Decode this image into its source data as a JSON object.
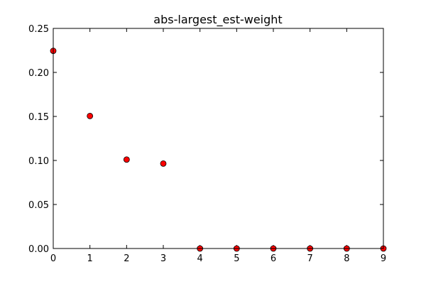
{
  "chart_data": {
    "type": "scatter",
    "title": "abs-largest_est-weight",
    "xlabel": "",
    "ylabel": "",
    "x": [
      0,
      1,
      2,
      3,
      4,
      5,
      6,
      7,
      8,
      9
    ],
    "y": [
      0.2245,
      0.1505,
      0.101,
      0.0965,
      0.0,
      0.0,
      0.0,
      0.0,
      0.0,
      0.0
    ],
    "xlim": [
      0,
      9
    ],
    "ylim": [
      0,
      0.25
    ],
    "xticks": [
      0,
      1,
      2,
      3,
      4,
      5,
      6,
      7,
      8,
      9
    ],
    "xtick_labels": [
      "0",
      "1",
      "2",
      "3",
      "4",
      "5",
      "6",
      "7",
      "8",
      "9"
    ],
    "yticks": [
      0,
      0.05,
      0.1,
      0.15,
      0.2,
      0.25
    ],
    "ytick_labels": [
      "0.00",
      "0.05",
      "0.10",
      "0.15",
      "0.20",
      "0.25"
    ],
    "grid": false,
    "marker_color": "#ff0000",
    "marker_edge_color": "#000000"
  }
}
